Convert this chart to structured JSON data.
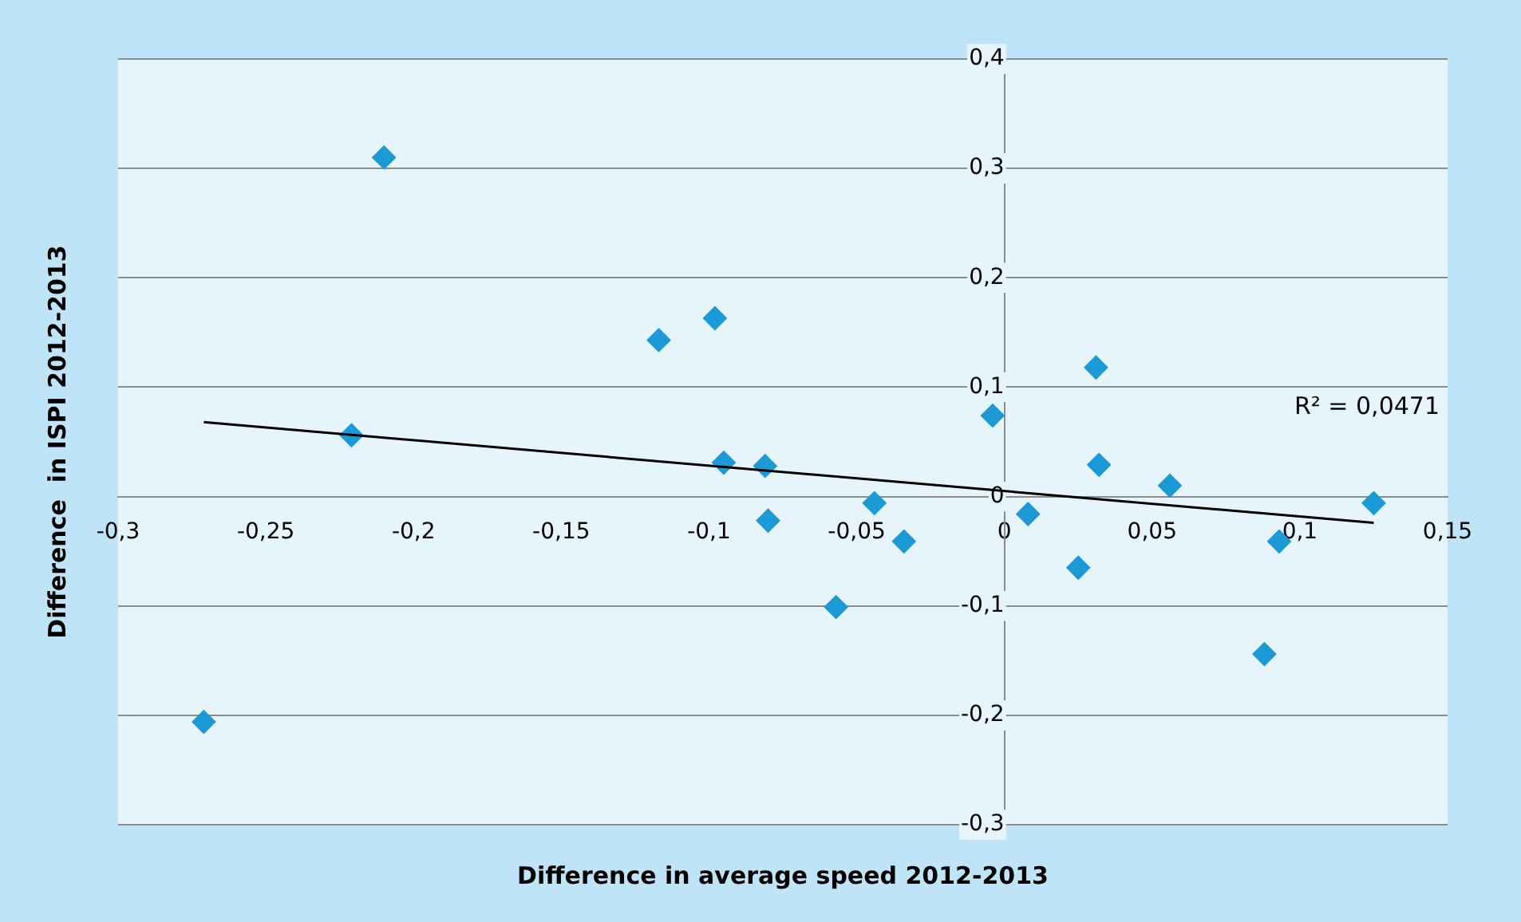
{
  "chart_data": {
    "type": "scatter",
    "xlabel": "Difference in average speed 2012-2013",
    "ylabel": "Difference  in ISPI 2012-2013",
    "series": [
      {
        "type": "scatter",
        "color": "#1b9ad6",
        "marker": "diamond",
        "x": [
          -0.21,
          -0.221,
          -0.271,
          -0.117,
          -0.098,
          -0.095,
          -0.081,
          -0.08,
          -0.044,
          -0.057,
          -0.034,
          -0.004,
          0.008,
          0.031,
          0.032,
          0.025,
          0.056,
          0.088,
          0.093,
          0.125
        ],
        "values": [
          0.31,
          0.056,
          -0.206,
          0.143,
          0.163,
          0.031,
          0.028,
          -0.022,
          -0.006,
          -0.101,
          -0.041,
          0.074,
          -0.016,
          0.118,
          0.029,
          -0.065,
          0.01,
          -0.144,
          -0.041,
          -0.006
        ]
      },
      {
        "type": "line",
        "color": "#000000",
        "marker": "none",
        "x": [
          -0.271,
          0.125
        ],
        "values": [
          0.068,
          -0.024
        ]
      }
    ],
    "annotations": [
      "R² = 0,0471"
    ],
    "xlim": [
      -0.3,
      0.15
    ],
    "ylim": [
      -0.3,
      0.4
    ],
    "xticks": [
      {
        "value": -0.3,
        "label": "-0,3"
      },
      {
        "value": -0.25,
        "label": "-0,25"
      },
      {
        "value": -0.2,
        "label": "-0,2"
      },
      {
        "value": -0.15,
        "label": "-0,15"
      },
      {
        "value": -0.1,
        "label": "-0,1"
      },
      {
        "value": -0.05,
        "label": "-0,05"
      },
      0,
      {
        "value": 0.05,
        "label": "0,05"
      },
      {
        "value": 0.1,
        "label": "0,1"
      },
      {
        "value": 0.15,
        "label": "0,15"
      }
    ],
    "yticks": [
      {
        "value": -0.3,
        "label": "-0,3"
      },
      {
        "value": -0.2,
        "label": "-0,2"
      },
      {
        "value": -0.1,
        "label": "-0,1"
      },
      0,
      {
        "value": 0.1,
        "label": "0,1"
      },
      {
        "value": 0.2,
        "label": "0,2"
      },
      {
        "value": 0.3,
        "label": "0,3"
      },
      {
        "value": 0.4,
        "label": "0,4"
      }
    ],
    "grid": "y",
    "legend": false
  }
}
